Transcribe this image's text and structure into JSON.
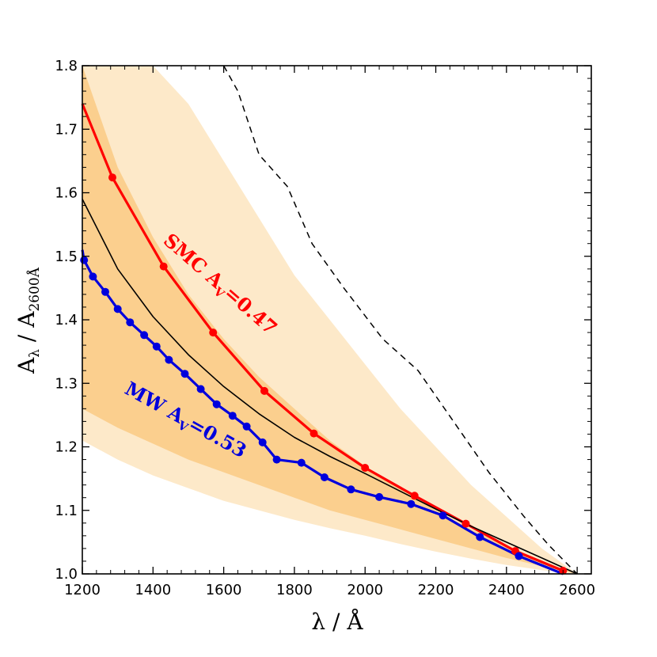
{
  "chart_data": {
    "type": "line",
    "xlabel": "λ / Å",
    "ylabel": "A",
    "ylabel_sub1": "λ",
    "ylabel_mid": " / A",
    "ylabel_sub2": "2600Å",
    "xlim": [
      1200,
      2640
    ],
    "ylim": [
      1.0,
      1.8
    ],
    "xticks": [
      1200,
      1400,
      1600,
      1800,
      2000,
      2200,
      2400,
      2600
    ],
    "yticks": [
      1.0,
      1.1,
      1.2,
      1.3,
      1.4,
      1.5,
      1.6,
      1.7,
      1.8
    ],
    "x_tick_labels": [
      "1200",
      "1400",
      "1600",
      "1800",
      "2000",
      "2200",
      "2400",
      "2600"
    ],
    "y_tick_labels": [
      "1.0",
      "1.1",
      "1.2",
      "1.3",
      "1.4",
      "1.5",
      "1.6",
      "1.7",
      "1.8"
    ],
    "colors": {
      "smc": "#ff0000",
      "mw": "#0000dd",
      "outer_band": "#fde9c9",
      "inner_band": "#fbcf8e",
      "black": "#000000"
    },
    "outer_band": {
      "x": [
        1200,
        1300,
        1400,
        1500,
        1600,
        1700,
        1800,
        1900,
        2000,
        2100,
        2200,
        2300,
        2400,
        2500,
        2600
      ],
      "upper": [
        1.8,
        1.8,
        1.8,
        1.74,
        1.65,
        1.56,
        1.47,
        1.4,
        1.33,
        1.26,
        1.2,
        1.14,
        1.09,
        1.04,
        1.0
      ],
      "lower": [
        1.21,
        1.18,
        1.155,
        1.135,
        1.115,
        1.1,
        1.085,
        1.072,
        1.06,
        1.047,
        1.035,
        1.024,
        1.014,
        1.006,
        1.0
      ]
    },
    "inner_band": {
      "x": [
        1200,
        1300,
        1400,
        1500,
        1600,
        1700,
        1800,
        1900,
        2000,
        2100,
        2200,
        2300,
        2400,
        2500,
        2600
      ],
      "upper": [
        1.8,
        1.64,
        1.53,
        1.44,
        1.37,
        1.31,
        1.26,
        1.21,
        1.17,
        1.135,
        1.1,
        1.07,
        1.045,
        1.02,
        1.0
      ],
      "lower": [
        1.26,
        1.23,
        1.205,
        1.18,
        1.16,
        1.14,
        1.12,
        1.1,
        1.085,
        1.07,
        1.055,
        1.04,
        1.025,
        1.012,
        1.0
      ]
    },
    "series": [
      {
        "name": "SMC",
        "label": "SMC A",
        "label_sub": "V",
        "label_value": "=0.47",
        "style": "solid-markers",
        "x": [
          1200,
          1285,
          1430,
          1570,
          1715,
          1855,
          2000,
          2140,
          2285,
          2425,
          2560
        ],
        "values": [
          1.74,
          1.624,
          1.484,
          1.38,
          1.288,
          1.221,
          1.167,
          1.123,
          1.079,
          1.036,
          1.005
        ]
      },
      {
        "name": "MW",
        "label": "MW A",
        "label_sub": "V",
        "label_value": "=0.53",
        "style": "solid-markers",
        "x": [
          1200,
          1205,
          1230,
          1265,
          1300,
          1335,
          1375,
          1410,
          1445,
          1490,
          1535,
          1580,
          1625,
          1665,
          1710,
          1750,
          1820,
          1885,
          1960,
          2040,
          2130,
          2220,
          2325,
          2435,
          2560
        ],
        "values": [
          1.51,
          1.494,
          1.468,
          1.444,
          1.417,
          1.396,
          1.376,
          1.358,
          1.337,
          1.315,
          1.291,
          1.267,
          1.249,
          1.232,
          1.207,
          1.18,
          1.175,
          1.152,
          1.133,
          1.121,
          1.11,
          1.092,
          1.058,
          1.028,
          1.0
        ],
        "marker_from": 1
      },
      {
        "name": "mean",
        "style": "thin",
        "x": [
          1200,
          1300,
          1400,
          1500,
          1600,
          1700,
          1800,
          1900,
          2000,
          2100,
          2200,
          2300,
          2400,
          2500,
          2600
        ],
        "values": [
          1.59,
          1.48,
          1.405,
          1.345,
          1.295,
          1.252,
          1.215,
          1.185,
          1.158,
          1.13,
          1.102,
          1.075,
          1.05,
          1.025,
          1.0
        ]
      },
      {
        "name": "dashed",
        "style": "dashed",
        "x": [
          1600,
          1640,
          1700,
          1780,
          1850,
          1940,
          2050,
          2150,
          2250,
          2350,
          2450,
          2520,
          2600
        ],
        "values": [
          1.8,
          1.76,
          1.66,
          1.61,
          1.52,
          1.45,
          1.37,
          1.32,
          1.24,
          1.16,
          1.09,
          1.045,
          1.0
        ]
      }
    ]
  }
}
